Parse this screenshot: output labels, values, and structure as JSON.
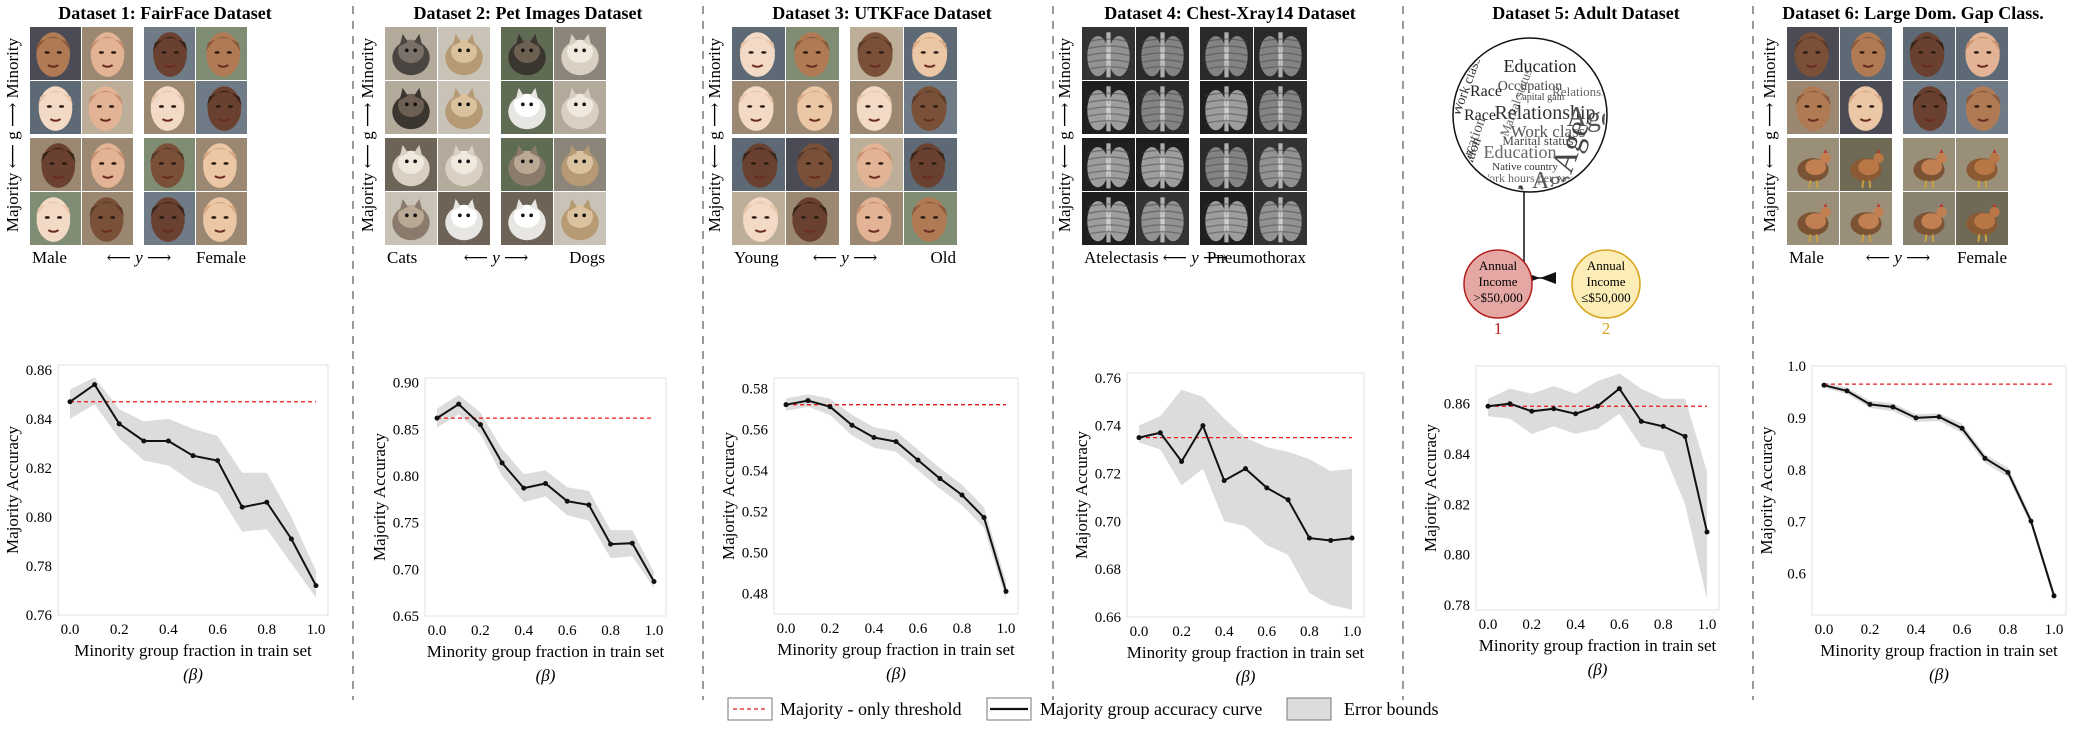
{
  "panels": [
    {
      "title": "Dataset 1: FairFace Dataset",
      "image_type": "photo-grid",
      "theme": "faces",
      "row_label": "Majority ⟵ g ⟶ Minority",
      "class_left": "Male",
      "class_mid": "⟵ y ⟶",
      "class_right": "Female"
    },
    {
      "title": "Dataset 2: Pet Images Dataset",
      "image_type": "photo-grid",
      "theme": "pets",
      "row_label": "Majority ⟵ g ⟶ Minority",
      "class_left": "Cats",
      "class_mid": "⟵ y ⟶",
      "class_right": "Dogs"
    },
    {
      "title": "Dataset 3: UTKFace Dataset",
      "image_type": "photo-grid",
      "theme": "faces",
      "row_label": "Majority ⟵ g ⟶ Minority",
      "class_left": "Young",
      "class_mid": "⟵ y ⟶",
      "class_right": "Old"
    },
    {
      "title": "Dataset 4: Chest-Xray14 Dataset",
      "image_type": "photo-grid",
      "theme": "xray",
      "row_label": "Majority ⟵ g ⟶ Minority",
      "class_left": "Atelectasis",
      "class_mid": "⟵ y ⟶",
      "class_right": "Pneumothorax"
    },
    {
      "title": "Dataset 5: Adult Dataset",
      "image_type": "feature-diagram",
      "features_label": "Features",
      "cloud_words": [
        "Education",
        "Occupation",
        "Marital status",
        "Relationship",
        "Work class",
        "Race",
        "Age",
        "Education",
        "Native country",
        "Age",
        "Occupation",
        "Marital status",
        "Work hours per week",
        "Age",
        "Education",
        "Race",
        "Capital gain",
        "Relationship",
        "Work class",
        "Age"
      ],
      "income_low": [
        "Annual",
        "Income",
        ">$50,000"
      ],
      "income_high": [
        "Annual",
        "Income",
        "≤$50,000"
      ],
      "income_low_num": "1",
      "income_high_num": "2"
    },
    {
      "title": "Dataset 6: Large Dom. Gap Class.",
      "image_type": "photo-grid",
      "theme": "faces-chickens",
      "row_label": "Majority ⟵ g ⟶ Minority",
      "class_left": "Male",
      "class_mid": "⟵ y ⟶",
      "class_right": "Female"
    }
  ],
  "chart_data": [
    {
      "type": "line",
      "xlabel": "Minority group fraction in train set",
      "xlabel2": "(β)",
      "ylabel": "Majority Accuracy",
      "x": [
        0.0,
        0.1,
        0.2,
        0.3,
        0.4,
        0.5,
        0.6,
        0.7,
        0.8,
        0.9,
        1.0
      ],
      "xticks": [
        "0.0",
        "0.2",
        "0.4",
        "0.6",
        "0.8",
        "1.0"
      ],
      "ylim": [
        0.76,
        0.862
      ],
      "yticks": [
        "0.76",
        "0.78",
        "0.80",
        "0.82",
        "0.84",
        "0.86"
      ],
      "ytick_values": [
        0.76,
        0.78,
        0.8,
        0.82,
        0.84,
        0.86
      ],
      "series": [
        {
          "name": "Majority group accuracy curve",
          "values": [
            0.847,
            0.854,
            0.838,
            0.831,
            0.831,
            0.825,
            0.823,
            0.804,
            0.806,
            0.791,
            0.772
          ]
        }
      ],
      "error_lower": [
        0.84,
        0.846,
        0.832,
        0.823,
        0.821,
        0.814,
        0.81,
        0.794,
        0.795,
        0.781,
        0.767
      ],
      "error_upper": [
        0.852,
        0.857,
        0.844,
        0.839,
        0.84,
        0.836,
        0.833,
        0.818,
        0.818,
        0.8,
        0.778
      ],
      "threshold": 0.847,
      "grid": false
    },
    {
      "type": "line",
      "xlabel": "Minority group fraction in train set",
      "xlabel2": "(β)",
      "ylabel": "Majority Accuracy",
      "x": [
        0.0,
        0.1,
        0.2,
        0.3,
        0.4,
        0.5,
        0.6,
        0.7,
        0.8,
        0.9,
        1.0
      ],
      "xticks": [
        "0.0",
        "0.2",
        "0.4",
        "0.6",
        "0.8",
        "1.0"
      ],
      "ylim": [
        0.65,
        0.905
      ],
      "yticks": [
        "0.65",
        "0.70",
        "0.75",
        "0.80",
        "0.85",
        "0.90"
      ],
      "ytick_values": [
        0.65,
        0.7,
        0.75,
        0.8,
        0.85,
        0.9
      ],
      "series": [
        {
          "name": "Majority group accuracy curve",
          "values": [
            0.862,
            0.877,
            0.855,
            0.814,
            0.787,
            0.792,
            0.773,
            0.769,
            0.727,
            0.728,
            0.687
          ]
        }
      ],
      "error_lower": [
        0.852,
        0.866,
        0.845,
        0.8,
        0.772,
        0.778,
        0.758,
        0.752,
        0.712,
        0.714,
        0.68
      ],
      "error_upper": [
        0.872,
        0.887,
        0.868,
        0.829,
        0.802,
        0.806,
        0.788,
        0.784,
        0.742,
        0.742,
        0.697
      ],
      "threshold": 0.862,
      "grid": false
    },
    {
      "type": "line",
      "xlabel": "Minority group fraction in train set",
      "xlabel2": "(β)",
      "ylabel": "Majority Accuracy",
      "x": [
        0.0,
        0.1,
        0.2,
        0.3,
        0.4,
        0.5,
        0.6,
        0.7,
        0.8,
        0.9,
        1.0
      ],
      "xticks": [
        "0.0",
        "0.2",
        "0.4",
        "0.6",
        "0.8",
        "1.0"
      ],
      "ylim": [
        0.47,
        0.585
      ],
      "yticks": [
        "0.48",
        "0.50",
        "0.52",
        "0.54",
        "0.56",
        "0.58"
      ],
      "ytick_values": [
        0.48,
        0.5,
        0.52,
        0.54,
        0.56,
        0.58
      ],
      "series": [
        {
          "name": "Majority group accuracy curve",
          "values": [
            0.572,
            0.574,
            0.571,
            0.562,
            0.556,
            0.554,
            0.545,
            0.536,
            0.528,
            0.517,
            0.481
          ]
        }
      ],
      "error_lower": [
        0.569,
        0.571,
        0.567,
        0.557,
        0.551,
        0.549,
        0.54,
        0.531,
        0.523,
        0.512,
        0.477
      ],
      "error_upper": [
        0.575,
        0.577,
        0.575,
        0.567,
        0.561,
        0.559,
        0.55,
        0.541,
        0.533,
        0.522,
        0.486
      ],
      "threshold": 0.572,
      "grid": false
    },
    {
      "type": "line",
      "xlabel": "Minority group fraction in train set",
      "xlabel2": "(β)",
      "ylabel": "Majority Accuracy",
      "x": [
        0.0,
        0.1,
        0.2,
        0.3,
        0.4,
        0.5,
        0.6,
        0.7,
        0.8,
        0.9,
        1.0
      ],
      "xticks": [
        "0.0",
        "0.2",
        "0.4",
        "0.6",
        "0.8",
        "1.0"
      ],
      "ylim": [
        0.66,
        0.762
      ],
      "yticks": [
        "0.66",
        "0.68",
        "0.70",
        "0.72",
        "0.74",
        "0.76"
      ],
      "ytick_values": [
        0.66,
        0.68,
        0.7,
        0.72,
        0.74,
        0.76
      ],
      "series": [
        {
          "name": "Majority group accuracy curve",
          "values": [
            0.735,
            0.737,
            0.725,
            0.74,
            0.717,
            0.722,
            0.714,
            0.709,
            0.693,
            0.692,
            0.693
          ]
        }
      ],
      "error_lower": [
        0.733,
        0.73,
        0.715,
        0.722,
        0.7,
        0.698,
        0.69,
        0.686,
        0.67,
        0.665,
        0.663
      ],
      "error_upper": [
        0.74,
        0.744,
        0.755,
        0.752,
        0.743,
        0.735,
        0.731,
        0.729,
        0.726,
        0.721,
        0.722
      ],
      "threshold": 0.735,
      "grid": false
    },
    {
      "type": "line",
      "xlabel": "Minority group fraction in train set",
      "xlabel2": "(β)",
      "ylabel": "Majority Accuracy",
      "x": [
        0.0,
        0.1,
        0.2,
        0.3,
        0.4,
        0.5,
        0.6,
        0.7,
        0.8,
        0.9,
        1.0
      ],
      "xticks": [
        "0.0",
        "0.2",
        "0.4",
        "0.6",
        "0.8",
        "1.0"
      ],
      "ylim": [
        0.778,
        0.875
      ],
      "yticks": [
        "0.78",
        "0.80",
        "0.82",
        "0.84",
        "0.86"
      ],
      "ytick_values": [
        0.78,
        0.8,
        0.82,
        0.84,
        0.86
      ],
      "series": [
        {
          "name": "Majority group accuracy curve",
          "values": [
            0.859,
            0.86,
            0.857,
            0.858,
            0.856,
            0.859,
            0.866,
            0.853,
            0.851,
            0.847,
            0.809
          ]
        }
      ],
      "error_lower": [
        0.855,
        0.854,
        0.848,
        0.851,
        0.848,
        0.85,
        0.856,
        0.843,
        0.841,
        0.82,
        0.782
      ],
      "error_upper": [
        0.862,
        0.866,
        0.864,
        0.867,
        0.864,
        0.869,
        0.872,
        0.866,
        0.862,
        0.862,
        0.833
      ],
      "threshold": 0.859,
      "grid": false
    },
    {
      "type": "line",
      "xlabel": "Minority group fraction in train set",
      "xlabel2": "(β)",
      "ylabel": "Majority Accuracy",
      "x": [
        0.0,
        0.1,
        0.2,
        0.3,
        0.4,
        0.5,
        0.6,
        0.7,
        0.8,
        0.9,
        1.0
      ],
      "xticks": [
        "0.0",
        "0.2",
        "0.4",
        "0.6",
        "0.8",
        "1.0"
      ],
      "ylim": [
        0.52,
        1.0
      ],
      "yticks": [
        "0.6",
        "0.7",
        "0.8",
        "0.9",
        "1.0"
      ],
      "ytick_values": [
        0.6,
        0.7,
        0.8,
        0.9,
        1.0
      ],
      "series": [
        {
          "name": "Majority group accuracy curve",
          "values": [
            0.963,
            0.952,
            0.926,
            0.921,
            0.9,
            0.902,
            0.88,
            0.822,
            0.795,
            0.701,
            0.557
          ]
        }
      ],
      "error_lower": [
        0.958,
        0.946,
        0.919,
        0.913,
        0.892,
        0.894,
        0.871,
        0.813,
        0.786,
        0.692,
        0.548
      ],
      "error_upper": [
        0.968,
        0.958,
        0.933,
        0.928,
        0.907,
        0.909,
        0.889,
        0.83,
        0.804,
        0.71,
        0.566
      ],
      "threshold": 0.965,
      "grid": false
    }
  ],
  "legend": {
    "threshold": "Majority - only threshold",
    "curve": "Majority group accuracy curve",
    "bounds": "Error bounds"
  },
  "colors": {
    "threshold": "#e41a1c",
    "curve": "#111111",
    "band": "#dcdcdc",
    "separator": "#9a9a9a",
    "income_low_fill": "#e5a7a3",
    "income_low_stroke": "#b21f1f",
    "income_high_fill": "#fbedb5",
    "income_high_stroke": "#d8a21a"
  }
}
